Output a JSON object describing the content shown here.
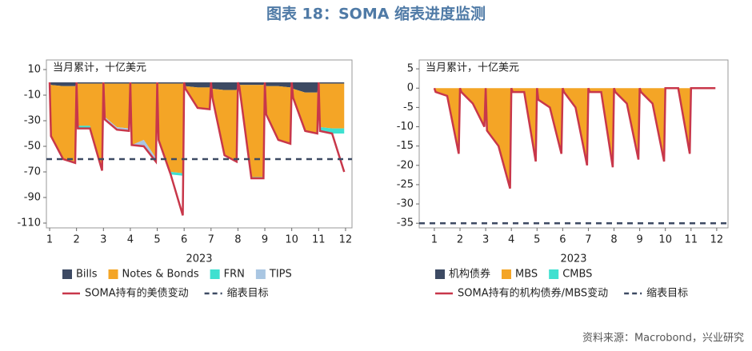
{
  "title": "图表 18：SOMA 缩表进度监测",
  "source": "资料来源：Macrobond，兴业研究",
  "chart_data": [
    {
      "type": "area",
      "annotation": "当月累计，十亿美元",
      "xlabel": "2023",
      "xlim": [
        0.88,
        12.24
      ],
      "xticks": [
        1,
        2,
        3,
        4,
        5,
        6,
        7,
        8,
        9,
        10,
        11,
        12
      ],
      "ylim": [
        -113.75,
        17.5
      ],
      "yticks": [
        10,
        -10,
        -30,
        -50,
        -70,
        -90,
        -110
      ],
      "x": [
        1,
        1.05,
        1.5,
        1.95,
        2,
        2.05,
        2.5,
        2.95,
        3,
        3.05,
        3.5,
        3.95,
        4,
        4.05,
        4.5,
        4.95,
        5,
        5.05,
        5.5,
        5.95,
        6,
        6.05,
        6.5,
        6.95,
        7,
        7.05,
        7.5,
        7.95,
        8,
        8.05,
        8.5,
        8.95,
        9,
        9.05,
        9.5,
        9.95,
        10,
        10.05,
        10.5,
        10.95,
        11,
        11.05,
        11.5,
        11.95
      ],
      "series": [
        {
          "name": "Bills",
          "kind": "area",
          "color": "#3d4a63",
          "values": [
            0,
            -2,
            -3,
            -3,
            0,
            -1,
            -1,
            -1,
            0,
            -1,
            -1,
            -1,
            0,
            -1,
            -1,
            -1,
            0,
            -1,
            -1,
            -1,
            0,
            -3,
            -4,
            -4,
            0,
            -5,
            -6,
            -6,
            0,
            -2,
            -2,
            -2,
            0,
            -3,
            -3,
            -4,
            0,
            -5,
            -8,
            -8,
            0,
            -1,
            -1,
            -1
          ]
        },
        {
          "name": "Notes & Bonds",
          "kind": "area",
          "color": "#f4a526",
          "values": [
            0,
            -40,
            -57,
            -59,
            0,
            -33,
            -33,
            -66,
            0,
            -26,
            -34,
            -35,
            0,
            -48,
            -44,
            -58,
            0,
            -44,
            -69,
            -70,
            0,
            -2,
            -16,
            -17,
            0,
            -7,
            -51,
            -56,
            0,
            -1,
            -72,
            -72,
            0,
            -20,
            -42,
            -44,
            0,
            -7,
            -30,
            -32,
            0,
            -34,
            -35,
            -35
          ]
        },
        {
          "name": "FRN",
          "kind": "area",
          "color": "#3fe0d0",
          "values": [
            0,
            0,
            0,
            0,
            0,
            -2,
            -2,
            -2,
            0,
            0,
            0,
            0,
            0,
            0,
            0,
            0,
            0,
            0,
            -2,
            -2,
            0,
            0,
            0,
            0,
            0,
            0,
            0,
            0,
            0,
            0,
            -1,
            -1,
            0,
            0,
            0,
            0,
            0,
            0,
            0,
            0,
            0,
            -3,
            -4,
            -4
          ]
        },
        {
          "name": "TIPS",
          "kind": "area",
          "color": "#a9c6e2",
          "values": [
            0,
            0,
            0,
            -1,
            0,
            0,
            0,
            0,
            0,
            -2,
            -2,
            -2,
            0,
            0,
            -5,
            -3,
            0,
            0,
            0,
            0,
            0,
            0,
            0,
            0,
            0,
            0,
            0,
            0,
            0,
            0,
            0,
            0,
            0,
            -2,
            0,
            0,
            0,
            0,
            0,
            0,
            0,
            0,
            0,
            0
          ]
        },
        {
          "name": "SOMA持有的美债变动",
          "kind": "line",
          "color": "#c8374a",
          "values": [
            0,
            -42,
            -60,
            -63,
            0,
            -36,
            -36,
            -69,
            0,
            -29,
            -37,
            -38,
            0,
            -49,
            -50,
            -62,
            0,
            -45,
            -72,
            -104,
            0,
            -5,
            -20,
            -21,
            0,
            -12,
            -57,
            -62,
            0,
            -3,
            -75,
            -75,
            0,
            -25,
            -45,
            -48,
            0,
            -12,
            -38,
            -40,
            0,
            -38,
            -40,
            -70
          ]
        },
        {
          "name": "缩表目标",
          "kind": "hline",
          "color": "#3d4a63",
          "value": -60
        }
      ]
    },
    {
      "type": "area",
      "annotation": "当月累计，十亿美元",
      "xlabel": "2023",
      "xlim": [
        0.41,
        12.44
      ],
      "xticks": [
        1,
        2,
        3,
        4,
        5,
        6,
        7,
        8,
        9,
        10,
        11,
        12
      ],
      "ylim": [
        -36.2,
        7.3
      ],
      "yticks": [
        5,
        0,
        -5,
        -10,
        -15,
        -20,
        -25,
        -30,
        -35
      ],
      "x": [
        1,
        1.05,
        1.5,
        1.95,
        2,
        2.05,
        2.5,
        2.95,
        3,
        3.05,
        3.5,
        3.95,
        4,
        4.05,
        4.5,
        4.95,
        5,
        5.05,
        5.5,
        5.95,
        6,
        6.05,
        6.5,
        6.95,
        7,
        7.05,
        7.5,
        7.95,
        8,
        8.05,
        8.5,
        8.95,
        9,
        9.05,
        9.5,
        9.95,
        10,
        10.05,
        10.5,
        10.95,
        11,
        11.05,
        11.5,
        11.95
      ],
      "series": [
        {
          "name": "机构债券",
          "kind": "area",
          "color": "#3d4a63",
          "values": [
            0,
            0,
            0,
            0,
            0,
            0,
            0,
            0,
            0,
            0,
            0,
            0,
            0,
            0,
            0,
            0,
            0,
            0,
            0,
            0,
            0,
            0,
            0,
            0,
            0,
            0,
            0,
            0,
            0,
            0,
            0,
            0,
            0,
            0,
            0,
            0,
            0,
            0,
            0,
            0,
            0,
            0,
            0,
            0
          ]
        },
        {
          "name": "MBS",
          "kind": "area",
          "color": "#f4a526",
          "values": [
            0,
            -1,
            -2,
            -17,
            0,
            -1,
            -4,
            -10,
            0,
            -11,
            -15,
            -26,
            0,
            -1,
            -1,
            -19,
            0,
            -3,
            -5,
            -17,
            0,
            -1,
            -5,
            -20,
            0,
            -1,
            -1,
            -20.5,
            0,
            -1,
            -4,
            -18.5,
            0,
            -1,
            -4,
            -19,
            0,
            0,
            0,
            -17,
            0,
            0,
            0,
            0
          ]
        },
        {
          "name": "CMBS",
          "kind": "area",
          "color": "#3fe0d0",
          "values": [
            0,
            0,
            0,
            0,
            0,
            0,
            0,
            0,
            0,
            0,
            0,
            0,
            0,
            0,
            0,
            0,
            0,
            0,
            0,
            0,
            0,
            0,
            0,
            0,
            0,
            0,
            0,
            0,
            0,
            0,
            0,
            0,
            0,
            0,
            0,
            0,
            0,
            0,
            0,
            0,
            0,
            0,
            0,
            0
          ]
        },
        {
          "name": "SOMA持有的机构债券/MBS变动",
          "kind": "line",
          "color": "#c8374a",
          "values": [
            0,
            -1,
            -2,
            -17,
            0,
            -1,
            -4,
            -10,
            0,
            -11,
            -15,
            -26,
            0,
            -1,
            -1,
            -19,
            0,
            -3,
            -5,
            -17,
            0,
            -1,
            -5,
            -20,
            0,
            -1,
            -1,
            -20.5,
            0,
            -1,
            -4,
            -18.5,
            0,
            -1,
            -4,
            -19,
            0,
            0,
            0,
            -17,
            0,
            0,
            0,
            0
          ]
        },
        {
          "name": "缩表目标",
          "kind": "hline",
          "color": "#3d4a63",
          "value": -35
        }
      ]
    }
  ]
}
